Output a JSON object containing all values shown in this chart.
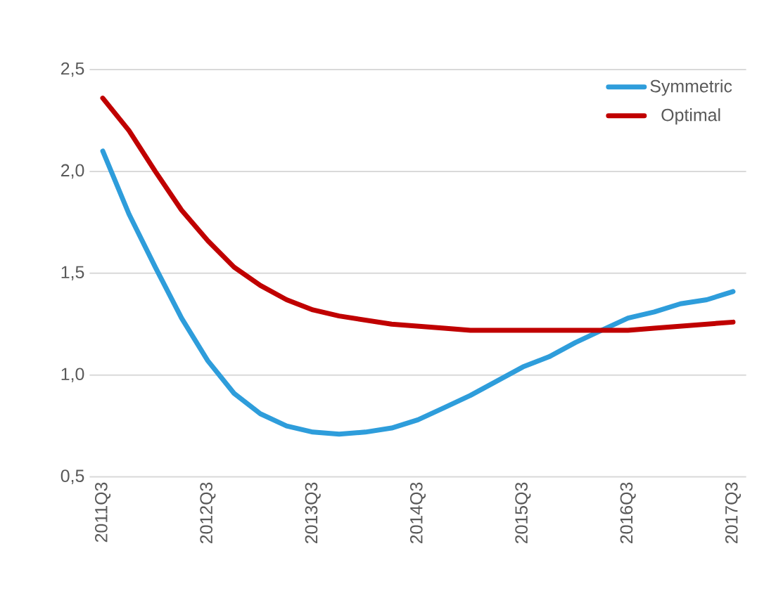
{
  "chart_data": {
    "type": "line",
    "categories": [
      "2011Q3",
      null,
      null,
      null,
      "2012Q3",
      null,
      null,
      null,
      "2013Q3",
      null,
      null,
      null,
      "2014Q3",
      null,
      null,
      null,
      "2015Q3",
      null,
      null,
      null,
      "2016Q3",
      null,
      null,
      null,
      "2017Q3"
    ],
    "series": [
      {
        "name": "Symmetric",
        "color": "#2e9ddb",
        "values": [
          2.1,
          1.79,
          1.53,
          1.28,
          1.07,
          0.91,
          0.81,
          0.75,
          0.72,
          0.71,
          0.72,
          0.74,
          0.78,
          0.84,
          0.9,
          0.97,
          1.04,
          1.09,
          1.16,
          1.22,
          1.28,
          1.31,
          1.35,
          1.37,
          1.41
        ]
      },
      {
        "name": "Optimal",
        "color": "#c00000",
        "values": [
          2.36,
          2.2,
          2.0,
          1.81,
          1.66,
          1.53,
          1.44,
          1.37,
          1.32,
          1.29,
          1.27,
          1.25,
          1.24,
          1.23,
          1.22,
          1.22,
          1.22,
          1.22,
          1.22,
          1.22,
          1.22,
          1.23,
          1.24,
          1.25,
          1.26
        ]
      }
    ],
    "ylim": [
      0.5,
      2.5
    ],
    "yticks": [
      {
        "value": 0.5,
        "label": "0,5"
      },
      {
        "value": 1.0,
        "label": "1,0"
      },
      {
        "value": 1.5,
        "label": "1,5"
      },
      {
        "value": 2.0,
        "label": "2,0"
      },
      {
        "value": 2.5,
        "label": "2,5"
      }
    ],
    "grid": "y",
    "legend": "top right",
    "marker": "none",
    "line_style": "solid"
  }
}
